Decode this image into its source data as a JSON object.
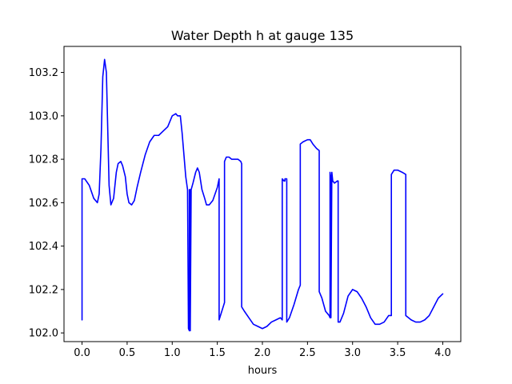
{
  "chart_data": {
    "type": "line",
    "title": "Water Depth h at gauge 135",
    "xlabel": "hours",
    "ylabel": "",
    "xlim": [
      -0.2,
      4.2
    ],
    "ylim": [
      101.96,
      103.32
    ],
    "grid": false,
    "legend": "none",
    "x_ticks": [
      0.0,
      0.5,
      1.0,
      1.5,
      2.0,
      2.5,
      3.0,
      3.5,
      4.0
    ],
    "x_tick_labels": [
      "0.0",
      "0.5",
      "1.0",
      "1.5",
      "2.0",
      "2.5",
      "3.0",
      "3.5",
      "4.0"
    ],
    "y_ticks": [
      102.0,
      102.2,
      102.4,
      102.6,
      102.8,
      103.0,
      103.2
    ],
    "y_tick_labels": [
      "102.0",
      "102.2",
      "102.4",
      "102.6",
      "102.8",
      "103.0",
      "103.2"
    ],
    "series": [
      {
        "color": "#0000ff",
        "x": [
          0.0,
          0.0,
          0.03,
          0.08,
          0.13,
          0.17,
          0.19,
          0.21,
          0.23,
          0.25,
          0.27,
          0.3,
          0.32,
          0.35,
          0.38,
          0.4,
          0.43,
          0.45,
          0.48,
          0.5,
          0.52,
          0.55,
          0.58,
          0.61,
          0.65,
          0.7,
          0.75,
          0.8,
          0.85,
          0.9,
          0.95,
          1.0,
          1.04,
          1.06,
          1.09,
          1.11,
          1.13,
          1.15,
          1.17,
          1.18,
          1.19,
          1.19,
          1.2,
          1.2,
          1.21,
          1.23,
          1.26,
          1.28,
          1.3,
          1.33,
          1.36,
          1.38,
          1.41,
          1.45,
          1.5,
          1.52,
          1.52,
          1.55,
          1.58,
          1.58,
          1.6,
          1.63,
          1.66,
          1.7,
          1.73,
          1.76,
          1.77,
          1.77,
          1.8,
          1.85,
          1.9,
          1.95,
          2.0,
          2.05,
          2.1,
          2.15,
          2.2,
          2.22,
          2.22,
          2.24,
          2.25,
          2.25,
          2.27,
          2.27,
          2.3,
          2.35,
          2.4,
          2.42,
          2.42,
          2.45,
          2.5,
          2.53,
          2.56,
          2.6,
          2.63,
          2.63,
          2.66,
          2.7,
          2.74,
          2.75,
          2.75,
          2.76,
          2.76,
          2.77,
          2.78,
          2.8,
          2.83,
          2.84,
          2.84,
          2.86,
          2.9,
          2.95,
          3.0,
          3.05,
          3.1,
          3.15,
          3.2,
          3.25,
          3.3,
          3.35,
          3.4,
          3.43,
          3.43,
          3.46,
          3.5,
          3.55,
          3.59,
          3.59,
          3.65,
          3.7,
          3.75,
          3.8,
          3.85,
          3.9,
          3.95,
          4.0
        ],
        "y": [
          102.06,
          102.71,
          102.71,
          102.68,
          102.62,
          102.6,
          102.64,
          102.85,
          103.18,
          103.26,
          103.2,
          102.68,
          102.59,
          102.62,
          102.74,
          102.78,
          102.79,
          102.77,
          102.72,
          102.64,
          102.6,
          102.59,
          102.61,
          102.67,
          102.74,
          102.82,
          102.88,
          102.91,
          102.91,
          102.93,
          102.95,
          103.0,
          103.01,
          103.0,
          103.0,
          102.92,
          102.82,
          102.72,
          102.66,
          102.02,
          102.01,
          102.66,
          102.66,
          102.01,
          102.66,
          102.69,
          102.74,
          102.76,
          102.74,
          102.66,
          102.62,
          102.59,
          102.59,
          102.61,
          102.67,
          102.71,
          102.06,
          102.1,
          102.14,
          102.79,
          102.81,
          102.81,
          102.8,
          102.8,
          102.8,
          102.79,
          102.78,
          102.12,
          102.1,
          102.07,
          102.04,
          102.03,
          102.02,
          102.03,
          102.05,
          102.06,
          102.07,
          102.06,
          102.71,
          102.7,
          102.7,
          102.71,
          102.71,
          102.05,
          102.07,
          102.13,
          102.2,
          102.22,
          102.87,
          102.88,
          102.89,
          102.89,
          102.87,
          102.85,
          102.84,
          102.19,
          102.16,
          102.1,
          102.08,
          102.07,
          102.74,
          102.71,
          102.07,
          102.74,
          102.7,
          102.69,
          102.7,
          102.7,
          102.05,
          102.05,
          102.09,
          102.17,
          102.2,
          102.19,
          102.16,
          102.12,
          102.07,
          102.04,
          102.04,
          102.05,
          102.08,
          102.08,
          102.73,
          102.75,
          102.75,
          102.74,
          102.73,
          102.08,
          102.06,
          102.05,
          102.05,
          102.06,
          102.08,
          102.12,
          102.16,
          102.18
        ]
      }
    ]
  }
}
